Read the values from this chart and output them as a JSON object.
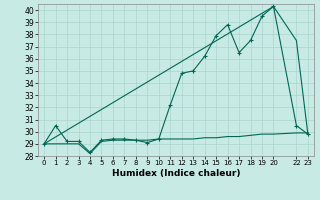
{
  "xlabel": "Humidex (Indice chaleur)",
  "xlim": [
    -0.5,
    23.5
  ],
  "ylim": [
    28,
    40.5
  ],
  "yticks": [
    28,
    29,
    30,
    31,
    32,
    33,
    34,
    35,
    36,
    37,
    38,
    39,
    40
  ],
  "xticks": [
    0,
    1,
    2,
    3,
    4,
    5,
    6,
    7,
    8,
    9,
    10,
    11,
    12,
    13,
    14,
    15,
    16,
    17,
    18,
    19,
    20,
    22,
    23
  ],
  "xtick_labels": [
    "0",
    "1",
    "2",
    "3",
    "4",
    "5",
    "6",
    "7",
    "8",
    "9",
    "10",
    "11",
    "12",
    "13",
    "14",
    "15",
    "16",
    "17",
    "18",
    "19",
    "20",
    "22",
    "23"
  ],
  "background_color": "#c8eae4",
  "grid_color": "#aad4cc",
  "line_color": "#006655",
  "line1_x": [
    0,
    1,
    2,
    3,
    4,
    5,
    6,
    7,
    8,
    9,
    10,
    11,
    12,
    13,
    14,
    15,
    16,
    17,
    18,
    19,
    20,
    22,
    23
  ],
  "line1_y": [
    29,
    30.5,
    29.2,
    29.2,
    28.3,
    29.3,
    29.4,
    29.4,
    29.3,
    29.1,
    29.4,
    32.2,
    34.8,
    35.0,
    36.2,
    37.9,
    38.8,
    36.5,
    37.5,
    39.5,
    40.3,
    30.5,
    29.8
  ],
  "line2_x": [
    0,
    1,
    2,
    3,
    4,
    5,
    6,
    7,
    8,
    9,
    10,
    11,
    12,
    13,
    14,
    15,
    16,
    17,
    18,
    19,
    20,
    22,
    23
  ],
  "line2_y": [
    29.0,
    29.0,
    29.0,
    29.0,
    28.2,
    29.2,
    29.3,
    29.3,
    29.3,
    29.3,
    29.4,
    29.4,
    29.4,
    29.4,
    29.5,
    29.5,
    29.6,
    29.6,
    29.7,
    29.8,
    29.8,
    29.9,
    29.9
  ],
  "line3_x": [
    0,
    20,
    22,
    23
  ],
  "line3_y": [
    29.0,
    40.3,
    37.5,
    29.8
  ]
}
